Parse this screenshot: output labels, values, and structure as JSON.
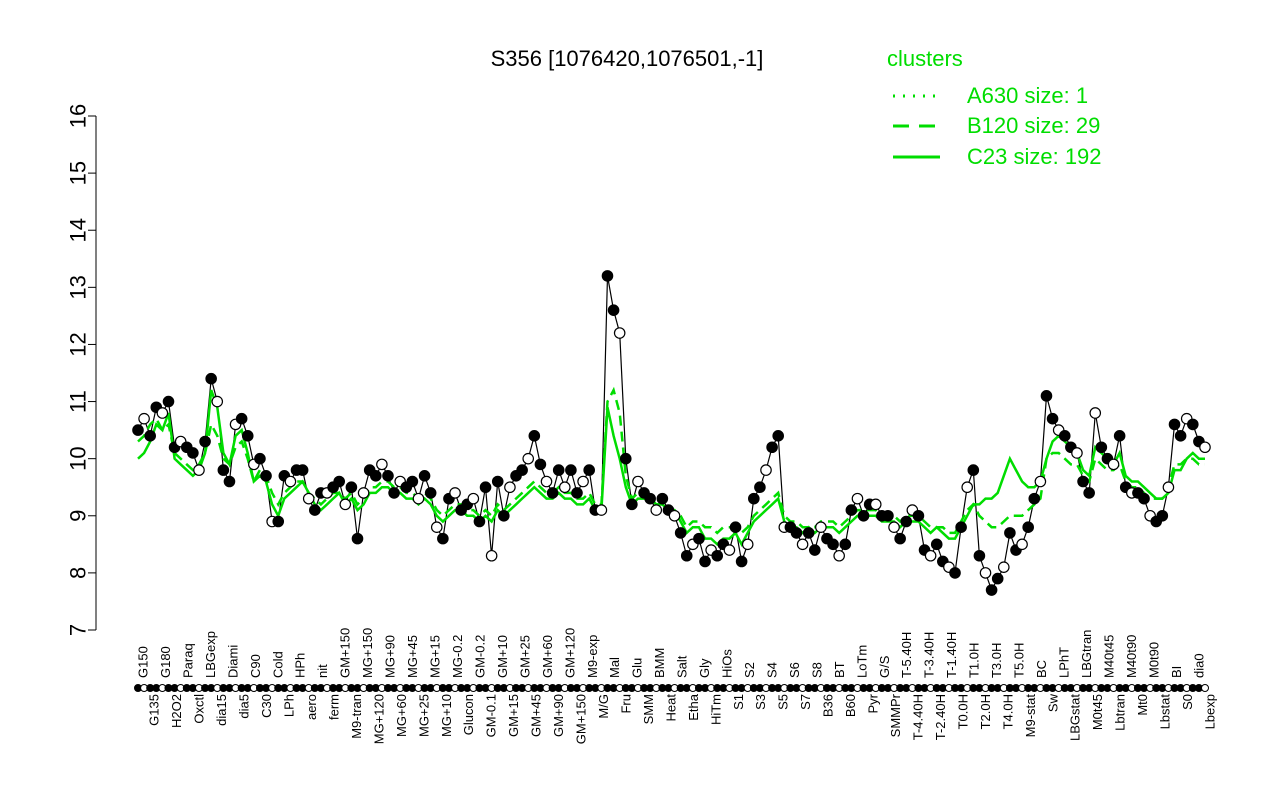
{
  "chart_data": {
    "type": "line",
    "title": "S356 [1076420,1076501,-1]",
    "xlabel": "",
    "ylabel": "",
    "ylim": [
      7,
      16
    ],
    "yticks": [
      7,
      8,
      9,
      10,
      11,
      12,
      13,
      14,
      15,
      16
    ],
    "legend": {
      "title": "clusters",
      "placement": "top-right",
      "entries": [
        {
          "label": "A630 size: 1",
          "style": "dotted"
        },
        {
          "label": "B120 size: 29",
          "style": "dashed"
        },
        {
          "label": "C23 size: 192",
          "style": "solid"
        }
      ]
    },
    "line_color": "#00dd00",
    "top_labels": [
      "G150",
      "G135",
      "G180",
      "H2O2",
      "Paraq",
      "Oxctl",
      "LBGexp",
      "dia15",
      "Diami",
      "dia5",
      "C90",
      "C30",
      "Cold",
      "LPh",
      "HPh",
      "aero",
      "nit",
      "ferm",
      "GM+150",
      "M9-tran",
      "MG+150",
      "MG+120",
      "MG+90",
      "MG+60",
      "MG+45",
      "MG+25",
      "MG+15",
      "MG+10",
      "MG-0.2",
      "Glucon",
      "GM-0.2",
      "GM-0.1",
      "GM+10",
      "GM+15",
      "GM+25",
      "GM+45",
      "GM+60",
      "GM+90",
      "GM+120",
      "GM+150",
      "M9-exp",
      "M/G",
      "Mal",
      "Fru",
      "Glu",
      "SMM",
      "BMM",
      "Heat",
      "Salt",
      "Etha",
      "Gly",
      "HiTm",
      "HiOs",
      "S1",
      "S2",
      "S3",
      "S4",
      "S5",
      "S6",
      "S7",
      "S8",
      "B36",
      "BT",
      "B60",
      "LoTm",
      "Pyr",
      "G/S",
      "SMMPr",
      "T-5.40H",
      "T-4.40H",
      "T-3.40H",
      "T-2.40H",
      "T-1.40H",
      "T0.0H",
      "T1.0H",
      "T2.0H",
      "T3.0H",
      "T4.0H",
      "T5.0H",
      "M9-stat",
      "BC",
      "Sw",
      "LPhT",
      "LBGstat",
      "LBGtran",
      "M0t45",
      "M40t45",
      "Lbtran",
      "M40t90",
      "Mt0",
      "M0t90",
      "Lbstat",
      "BI",
      "S0",
      "dia0",
      "Lbexp"
    ],
    "series": [
      {
        "values": [
          10.5,
          10.7,
          10.4,
          10.9,
          10.8,
          11.0,
          10.2,
          10.3,
          10.2,
          10.1,
          9.8,
          10.3,
          11.4,
          11.0,
          9.8,
          9.6,
          10.6,
          10.7,
          10.4,
          9.9,
          10.0,
          9.7,
          8.9,
          8.9,
          9.7,
          9.6,
          9.8,
          9.8,
          9.3,
          9.1,
          9.4,
          9.4,
          9.5,
          9.6,
          9.2,
          9.5,
          8.6,
          9.4,
          9.8,
          9.7,
          9.9,
          9.7,
          9.4,
          9.6,
          9.5,
          9.6,
          9.3,
          9.7,
          9.4,
          8.8,
          8.6,
          9.3,
          9.4,
          9.1,
          9.2,
          9.3,
          8.9,
          9.5,
          8.3,
          9.6,
          9.0,
          9.5,
          9.7,
          9.8,
          10.0,
          10.4,
          9.9,
          9.6,
          9.4,
          9.8,
          9.5,
          9.8,
          9.4,
          9.6,
          9.8,
          9.1,
          9.1,
          13.2,
          12.6,
          12.2,
          10.0,
          9.2,
          9.6,
          9.4,
          9.3,
          9.1,
          9.3,
          9.1,
          9.0,
          8.7,
          8.3,
          8.5,
          8.6,
          8.2,
          8.4,
          8.3,
          8.5,
          8.4,
          8.8,
          8.2,
          8.5,
          9.3,
          9.5,
          9.8,
          10.2,
          10.4,
          8.8,
          8.8,
          8.7,
          8.5,
          8.7,
          8.4,
          8.8,
          8.6,
          8.5,
          8.3,
          8.5,
          9.1,
          9.3,
          9.0,
          9.2,
          9.2,
          9.0,
          9.0,
          8.8,
          8.6,
          8.9,
          9.1,
          9.0,
          8.4,
          8.3,
          8.5,
          8.2,
          8.1,
          8.0,
          8.8,
          9.5,
          9.8,
          8.3,
          8.0,
          7.7,
          7.9,
          8.1,
          8.7,
          8.4,
          8.5,
          8.8,
          9.3,
          9.6,
          11.1,
          10.7,
          10.5,
          10.4,
          10.2,
          10.1,
          9.6,
          9.4,
          10.8,
          10.2,
          10.0,
          9.9,
          10.4,
          9.5,
          9.4,
          9.4,
          9.3,
          9.0,
          8.9,
          9.0,
          9.5,
          10.6,
          10.4,
          10.7,
          10.6,
          10.3,
          10.2
        ]
      },
      {
        "values": [
          10.3,
          10.4,
          10.6,
          10.7,
          10.5,
          10.6,
          10.1,
          10.0,
          9.9,
          9.8,
          9.9,
          10.1,
          10.6,
          10.4,
          10.0,
          9.9,
          10.2,
          10.3,
          10.0,
          9.6,
          9.8,
          9.7,
          9.4,
          9.2,
          9.4,
          9.5,
          9.6,
          9.6,
          9.4,
          9.3,
          9.2,
          9.3,
          9.4,
          9.4,
          9.3,
          9.4,
          9.2,
          9.3,
          9.5,
          9.5,
          9.6,
          9.6,
          9.5,
          9.5,
          9.4,
          9.4,
          9.3,
          9.4,
          9.3,
          9.1,
          9.0,
          9.1,
          9.2,
          9.2,
          9.1,
          9.1,
          9.0,
          9.1,
          9.0,
          9.2,
          9.1,
          9.2,
          9.3,
          9.4,
          9.5,
          9.6,
          9.5,
          9.4,
          9.4,
          9.5,
          9.4,
          9.4,
          9.3,
          9.3,
          9.4,
          9.2,
          9.2,
          11.0,
          11.2,
          10.8,
          9.7,
          9.3,
          9.4,
          9.3,
          9.3,
          9.2,
          9.2,
          9.1,
          9.1,
          9.0,
          8.8,
          8.9,
          8.9,
          8.8,
          8.8,
          8.7,
          8.8,
          8.8,
          8.8,
          8.7,
          8.8,
          9.0,
          9.1,
          9.2,
          9.3,
          9.4,
          9.0,
          8.9,
          8.9,
          8.8,
          8.8,
          8.8,
          8.9,
          8.9,
          8.9,
          8.8,
          8.9,
          9.0,
          9.1,
          9.1,
          9.1,
          9.1,
          9.0,
          9.0,
          9.0,
          8.9,
          9.0,
          9.0,
          9.0,
          8.9,
          8.8,
          8.8,
          8.8,
          8.7,
          8.7,
          8.9,
          9.1,
          9.2,
          9.0,
          8.9,
          8.8,
          8.8,
          8.9,
          9.0,
          9.0,
          9.0,
          9.1,
          9.2,
          9.3,
          10.0,
          10.1,
          10.1,
          10.0,
          9.9,
          9.9,
          9.7,
          9.6,
          10.0,
          9.9,
          9.8,
          9.8,
          9.9,
          9.6,
          9.5,
          9.5,
          9.4,
          9.3,
          9.3,
          9.3,
          9.5,
          9.9,
          9.9,
          10.0,
          10.0,
          9.9,
          9.9
        ]
      },
      {
        "values": [
          10.0,
          10.1,
          10.3,
          10.6,
          10.5,
          10.8,
          10.0,
          9.9,
          9.8,
          9.7,
          9.8,
          10.1,
          11.2,
          10.9,
          10.1,
          9.9,
          10.4,
          10.5,
          10.1,
          9.6,
          9.7,
          9.6,
          9.2,
          9.0,
          9.3,
          9.4,
          9.5,
          9.6,
          9.4,
          9.2,
          9.1,
          9.2,
          9.3,
          9.4,
          9.2,
          9.3,
          9.1,
          9.2,
          9.4,
          9.4,
          9.5,
          9.5,
          9.4,
          9.4,
          9.3,
          9.3,
          9.2,
          9.3,
          9.2,
          9.0,
          8.9,
          9.0,
          9.1,
          9.1,
          9.0,
          9.0,
          8.9,
          9.0,
          8.9,
          9.1,
          9.0,
          9.1,
          9.2,
          9.3,
          9.4,
          9.5,
          9.4,
          9.3,
          9.3,
          9.4,
          9.3,
          9.3,
          9.2,
          9.2,
          9.3,
          9.1,
          9.1,
          10.9,
          10.4,
          10.0,
          9.5,
          9.2,
          9.3,
          9.3,
          9.3,
          9.2,
          9.2,
          9.1,
          9.1,
          8.9,
          8.7,
          8.8,
          8.8,
          8.6,
          8.6,
          8.5,
          8.6,
          8.6,
          8.7,
          8.5,
          8.7,
          8.9,
          9.0,
          9.1,
          9.2,
          9.3,
          8.9,
          8.8,
          8.8,
          8.7,
          8.8,
          8.7,
          8.8,
          8.8,
          8.8,
          8.7,
          8.8,
          8.9,
          9.0,
          9.0,
          9.0,
          9.0,
          8.9,
          8.9,
          8.9,
          8.8,
          8.9,
          8.9,
          8.9,
          8.8,
          8.7,
          8.8,
          8.7,
          8.6,
          8.6,
          8.8,
          9.0,
          9.2,
          9.2,
          9.3,
          9.3,
          9.4,
          9.7,
          10.0,
          9.8,
          9.6,
          9.5,
          9.5,
          9.6,
          10.0,
          10.3,
          10.4,
          10.3,
          10.2,
          10.1,
          9.8,
          9.7,
          10.2,
          10.1,
          10.0,
          9.9,
          10.1,
          9.7,
          9.6,
          9.6,
          9.5,
          9.4,
          9.3,
          9.3,
          9.4,
          9.8,
          9.8,
          10.0,
          10.1,
          10.0,
          10.0
        ]
      }
    ],
    "series_styles": [
      "points",
      "dashed",
      "solid"
    ]
  }
}
